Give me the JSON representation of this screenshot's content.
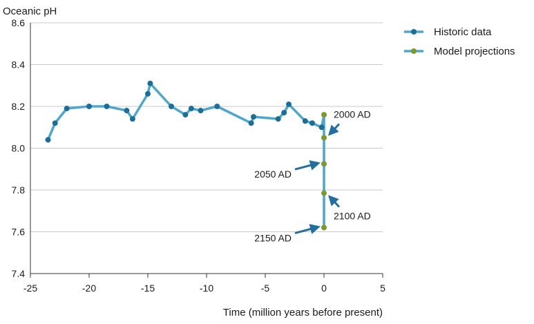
{
  "chart_data": {
    "type": "line",
    "title": "",
    "ylabel": "Oceanic pH",
    "xlabel": "Time (million years before present)",
    "xlim": [
      -25,
      5
    ],
    "ylim": [
      7.4,
      8.6
    ],
    "xticks": [
      -25,
      -20,
      -15,
      -10,
      -5,
      0,
      5
    ],
    "yticks": [
      7.4,
      7.6,
      7.8,
      8.0,
      8.2,
      8.4,
      8.6
    ],
    "ytick_labels": [
      "7.4",
      "7.6",
      "7.8",
      "8.0",
      "8.2",
      "8.4",
      "8.6"
    ],
    "grid": "horizontal",
    "legend_position": "top-right",
    "series": [
      {
        "name": "Historic data",
        "color": "#4aa8d0",
        "marker_color": "#1a6f9a",
        "x": [
          -23.5,
          -22.9,
          -21.9,
          -20.0,
          -18.5,
          -16.8,
          -16.3,
          -15.0,
          -14.8,
          -13.0,
          -11.8,
          -11.3,
          -10.5,
          -9.1,
          -6.2,
          -6.0,
          -3.9,
          -3.4,
          -3.0,
          -1.6,
          -1.0,
          -0.2
        ],
        "y": [
          8.04,
          8.12,
          8.19,
          8.2,
          8.2,
          8.18,
          8.14,
          8.26,
          8.31,
          8.2,
          8.16,
          8.19,
          8.18,
          8.2,
          8.12,
          8.15,
          8.14,
          8.17,
          8.21,
          8.13,
          8.12,
          8.1
        ]
      },
      {
        "name": "Model projections",
        "color": "#4aa8d0",
        "marker_color": "#7a9a2a",
        "x": [
          0,
          0,
          0,
          0,
          0
        ],
        "y": [
          8.16,
          8.05,
          7.925,
          7.785,
          7.62
        ]
      }
    ],
    "annotations": [
      {
        "text": "2000 AD",
        "x": 0,
        "y": 8.05,
        "side": "right",
        "color": "#1f6fa3"
      },
      {
        "text": "2050 AD",
        "x": 0,
        "y": 7.925,
        "side": "left",
        "color": "#1f6fa3"
      },
      {
        "text": "2100 AD",
        "x": 0,
        "y": 7.785,
        "side": "right",
        "color": "#1f6fa3"
      },
      {
        "text": "2150 AD",
        "x": 0,
        "y": 7.62,
        "side": "left",
        "color": "#1f6fa3"
      }
    ]
  }
}
